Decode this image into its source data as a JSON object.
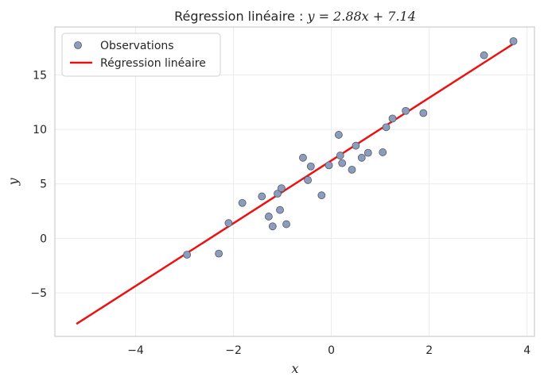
{
  "chart_data": {
    "type": "scatter",
    "title": "Régression linéaire : y = 2.88x + 7.14",
    "title_prefix": "Régression linéaire : ",
    "title_equation": "y = 2.88x + 7.14",
    "xlabel": "x",
    "ylabel": "y",
    "xlim": [
      -5.65,
      4.15
    ],
    "ylim": [
      -9.0,
      19.4
    ],
    "x_ticks": [
      -4,
      -2,
      0,
      2,
      4
    ],
    "y_ticks": [
      -5,
      0,
      5,
      10,
      15
    ],
    "x_tick_labels": [
      "−4",
      "−2",
      "0",
      "2",
      "4"
    ],
    "y_tick_labels": [
      "−5",
      "0",
      "5",
      "10",
      "15"
    ],
    "grid": true,
    "legend_position": "upper-left",
    "series": [
      {
        "name": "Observations",
        "kind": "scatter",
        "color": "#8c9cbd",
        "edge_color": "#555a66",
        "points": [
          [
            -2.95,
            -1.5
          ],
          [
            -2.3,
            -1.4
          ],
          [
            -2.1,
            1.4
          ],
          [
            -1.82,
            3.25
          ],
          [
            -1.42,
            3.85
          ],
          [
            -1.28,
            2.0
          ],
          [
            -1.2,
            1.1
          ],
          [
            -1.1,
            4.1
          ],
          [
            -1.05,
            2.6
          ],
          [
            -1.02,
            4.6
          ],
          [
            -0.92,
            1.3
          ],
          [
            -0.58,
            7.4
          ],
          [
            -0.48,
            5.35
          ],
          [
            -0.42,
            6.6
          ],
          [
            -0.2,
            3.95
          ],
          [
            -0.05,
            6.7
          ],
          [
            0.15,
            9.5
          ],
          [
            0.18,
            7.6
          ],
          [
            0.22,
            6.9
          ],
          [
            0.42,
            6.3
          ],
          [
            0.5,
            8.5
          ],
          [
            0.62,
            7.4
          ],
          [
            0.75,
            7.85
          ],
          [
            1.05,
            7.9
          ],
          [
            1.12,
            10.2
          ],
          [
            1.25,
            11.0
          ],
          [
            1.52,
            11.7
          ],
          [
            1.88,
            11.5
          ],
          [
            3.12,
            16.8
          ],
          [
            3.72,
            18.1
          ]
        ]
      },
      {
        "name": "Régression linéaire",
        "kind": "line",
        "color": "#ee1010",
        "x": [
          -5.21,
          3.7
        ],
        "y": [
          -7.86,
          17.8
        ]
      }
    ]
  }
}
